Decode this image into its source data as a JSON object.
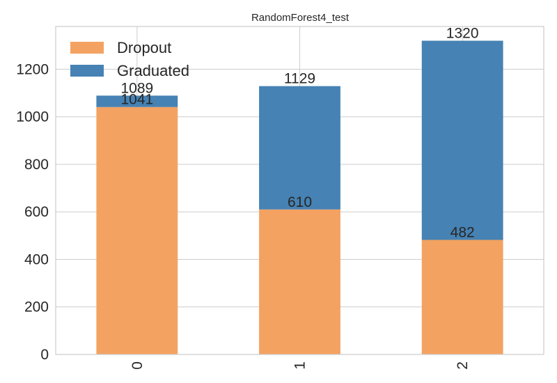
{
  "chart_data": {
    "type": "bar",
    "stacked": true,
    "title": "RandomForest4_test",
    "xlabel": "",
    "ylabel": "",
    "categories": [
      "0",
      "1",
      "2"
    ],
    "series": [
      {
        "name": "Dropout",
        "values": [
          1041,
          610,
          482
        ],
        "color": "#f4a261"
      },
      {
        "name": "Graduated",
        "values": [
          48,
          519,
          838
        ],
        "color": "#4682b4"
      }
    ],
    "bar_labels": {
      "Dropout": [
        "1041",
        "610",
        "482"
      ],
      "Graduated": [
        "1089",
        "1129",
        "1320"
      ]
    },
    "ylim": [
      0,
      1380
    ],
    "yticks": [
      0,
      200,
      400,
      600,
      800,
      1000,
      1200
    ],
    "ytick_labels": [
      "0",
      "200",
      "400",
      "600",
      "800",
      "1000",
      "1200"
    ],
    "grid": true,
    "legend_position": "top-left",
    "xtick_rotation": 90
  }
}
